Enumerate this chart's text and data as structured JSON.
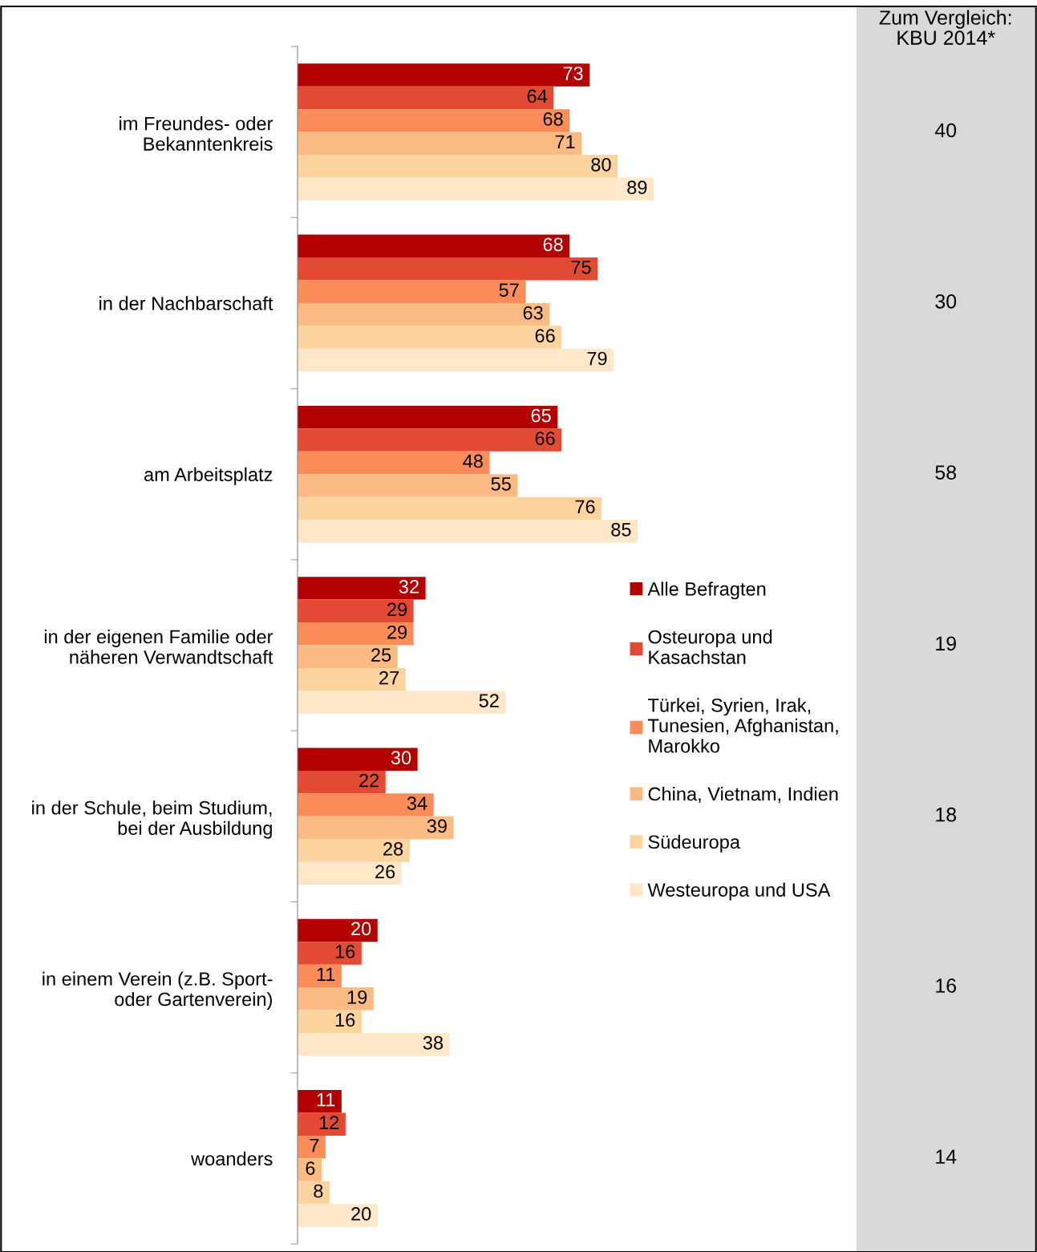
{
  "chart_data": [
    {
      "type": "bar",
      "orientation": "horizontal",
      "categories": [
        "im Freundes- oder\nBekanntenkreis",
        "in der Nachbarschaft",
        "am Arbeitsplatz",
        "in der eigenen Familie oder\nnäheren Verwandtschaft",
        "in der Schule, beim Studium,\nbei der Ausbildung",
        "in einem Verein (z.B. Sport-\noder Gartenverein)",
        "woanders"
      ],
      "series": [
        {
          "name": "Alle Befragten",
          "color": "#b30000",
          "values": [
            73,
            68,
            65,
            32,
            30,
            20,
            11
          ]
        },
        {
          "name": "Osteuropa und\nKasachstan",
          "color": "#e34a33",
          "values": [
            64,
            75,
            66,
            29,
            22,
            16,
            12
          ]
        },
        {
          "name": "Türkei, Syrien, Irak,\nTunesien, Afghanistan,\nMarokko",
          "color": "#fc8d59",
          "values": [
            68,
            57,
            48,
            29,
            34,
            11,
            7
          ]
        },
        {
          "name": "China, Vietnam, Indien",
          "color": "#fdbb84",
          "values": [
            71,
            63,
            55,
            25,
            39,
            19,
            6
          ]
        },
        {
          "name": "Südeuropa",
          "color": "#fdd49e",
          "values": [
            80,
            66,
            76,
            27,
            28,
            16,
            8
          ]
        },
        {
          "name": "Westeuropa und USA",
          "color": "#fee8c8",
          "values": [
            89,
            79,
            85,
            52,
            26,
            38,
            20
          ]
        }
      ],
      "data_labels": true,
      "legend": "right",
      "grid": false,
      "tick_labels": "y"
    },
    {
      "type": "other",
      "title": "Zum Vergleich:\nKBU 2014*",
      "values": [
        40,
        30,
        58,
        19,
        18,
        16,
        14
      ],
      "data_labels": true
    }
  ]
}
